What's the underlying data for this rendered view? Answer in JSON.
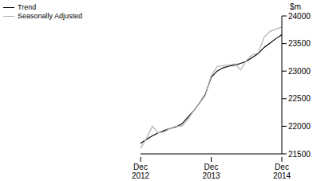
{
  "chart_data": {
    "type": "line",
    "y_label": "$m",
    "categories": [
      "Dec 2012",
      null,
      null,
      null,
      null,
      null,
      null,
      null,
      null,
      null,
      null,
      null,
      "Dec 2013",
      null,
      null,
      null,
      null,
      null,
      null,
      null,
      null,
      null,
      null,
      null,
      "Dec 2014"
    ],
    "series": [
      {
        "name": "Trend",
        "color": "#000000",
        "values": [
          21690,
          21760,
          21830,
          21880,
          21920,
          21960,
          21990,
          22040,
          22160,
          22280,
          22420,
          22580,
          22890,
          23000,
          23060,
          23090,
          23110,
          23140,
          23180,
          23250,
          23320,
          23430,
          23510,
          23590,
          23660
        ]
      },
      {
        "name": "Seasonally Adjusted",
        "color": "#b3b3b3",
        "values": [
          21600,
          21780,
          22000,
          21880,
          21900,
          21960,
          22000,
          22000,
          22120,
          22280,
          22420,
          22560,
          22920,
          23080,
          23100,
          23110,
          23130,
          23020,
          23200,
          23300,
          23330,
          23620,
          23720,
          23760,
          23800
        ]
      }
    ],
    "ylim": [
      21500,
      24000
    ],
    "yticks": [
      21500,
      22000,
      22500,
      23000,
      23500,
      24000
    ],
    "legend": "upper left"
  }
}
